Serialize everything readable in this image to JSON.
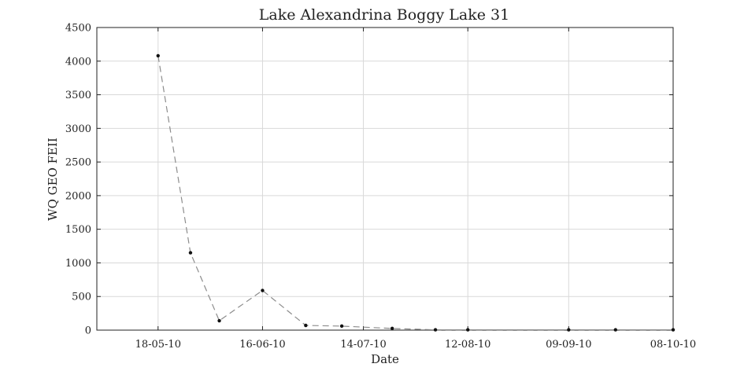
{
  "chart_data": {
    "type": "line",
    "title": "Lake Alexandrina Boggy Lake 31",
    "xlabel": "Date",
    "ylabel": "WQ GEO FEII",
    "x_ticks": [
      "18-05-10",
      "16-06-10",
      "14-07-10",
      "12-08-10",
      "09-09-10",
      "08-10-10"
    ],
    "xlim": [
      "2010-05-01",
      "2010-10-08"
    ],
    "ylim": [
      0,
      4500
    ],
    "y_ticks": [
      0,
      500,
      1000,
      1500,
      2000,
      2500,
      3000,
      3500,
      4000,
      4500
    ],
    "grid": true,
    "series": [
      {
        "x": [
          "2010-05-18",
          "2010-05-27",
          "2010-06-04",
          "2010-06-16",
          "2010-06-28",
          "2010-07-08",
          "2010-07-22",
          "2010-08-03",
          "2010-08-12",
          "2010-09-09",
          "2010-09-22",
          "2010-10-08"
        ],
        "values": [
          4080,
          1150,
          140,
          590,
          70,
          60,
          25,
          5,
          5,
          5,
          5,
          5
        ],
        "color": "#8c8c8c",
        "marker_color": "#111111",
        "line_style": "dashed"
      }
    ]
  }
}
